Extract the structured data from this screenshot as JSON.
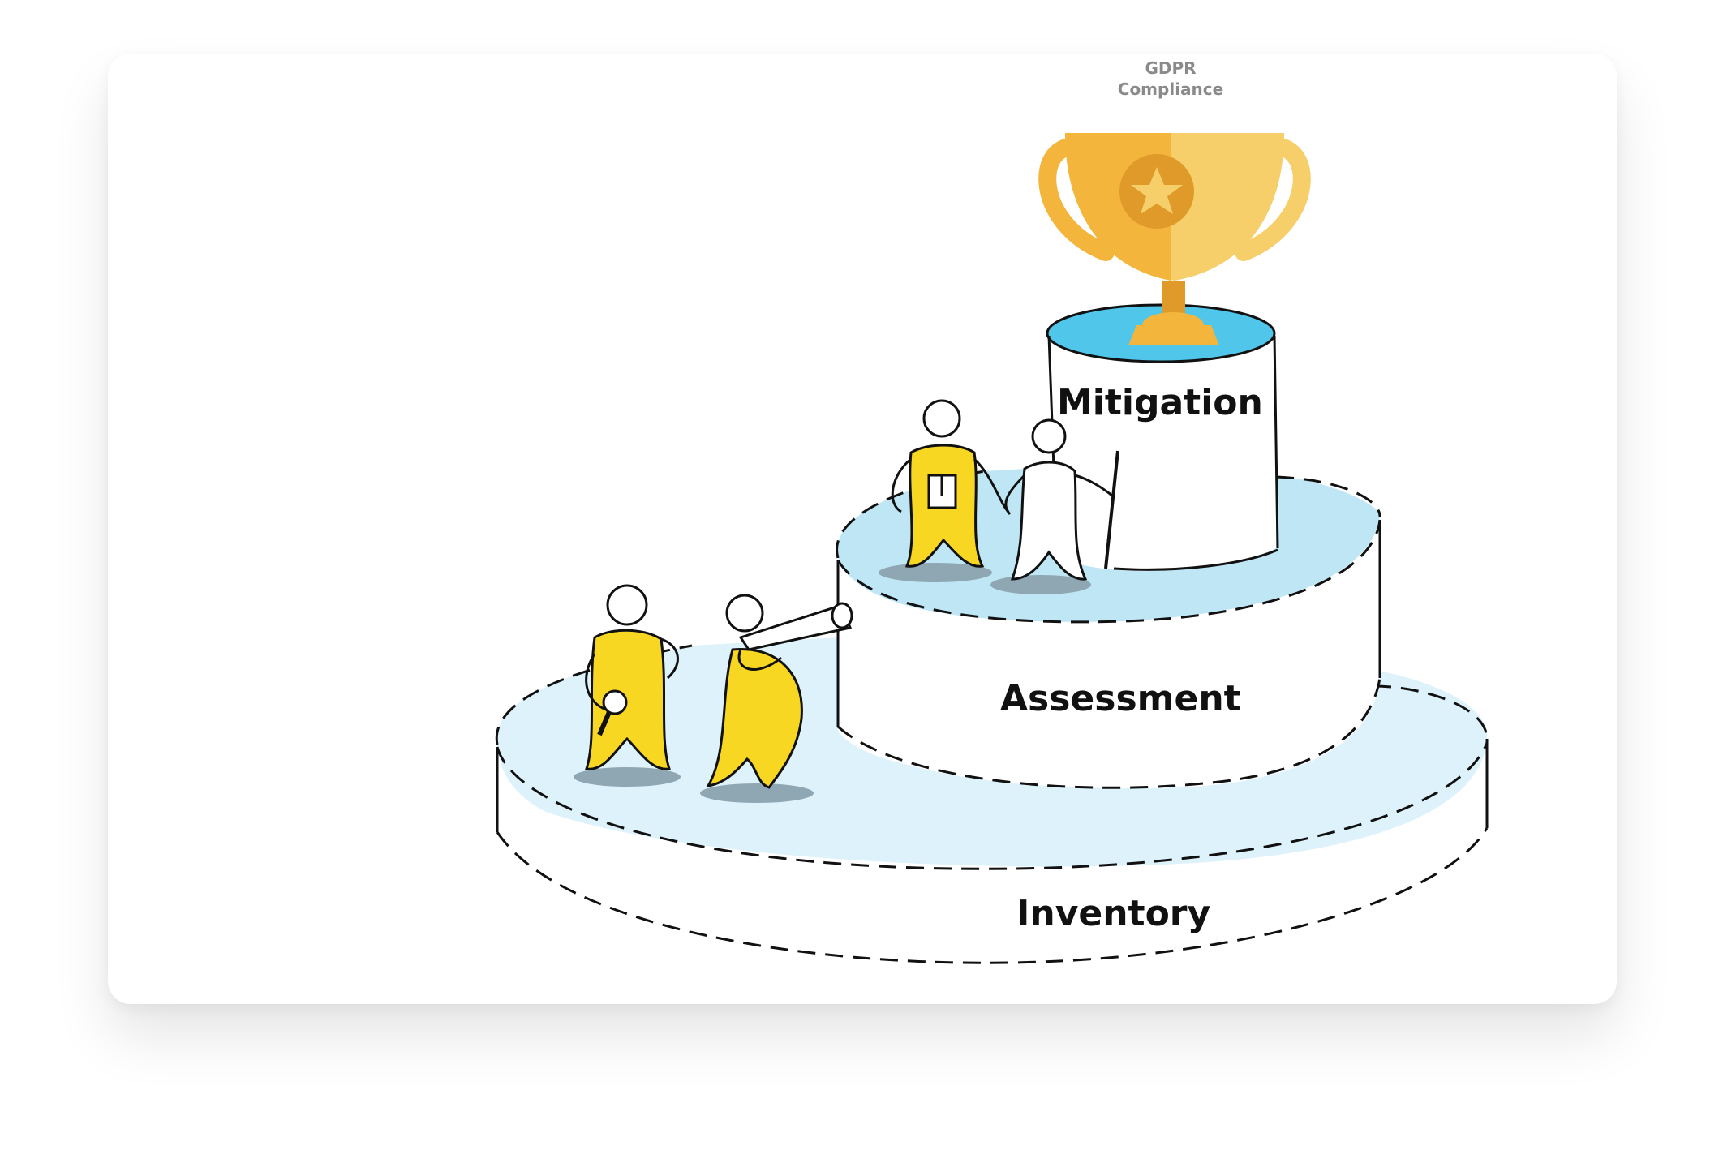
{
  "diagram": {
    "trophy_label_line1": "GDPR",
    "trophy_label_line2": "Compliance",
    "tiers": {
      "top": "Mitigation",
      "middle": "Assessment",
      "bottom": "Inventory"
    },
    "icons": {
      "trophy": "trophy-icon",
      "figures": "stick-figure-icon"
    },
    "colors": {
      "figure_yellow": "#F8D722",
      "tier_blue": "#BEE6F4",
      "tier_blue_light": "#DDF2FA",
      "top_disc": "#4FC6EA",
      "trophy_gold": "#F3B53B",
      "trophy_dark": "#E09A2A"
    }
  }
}
